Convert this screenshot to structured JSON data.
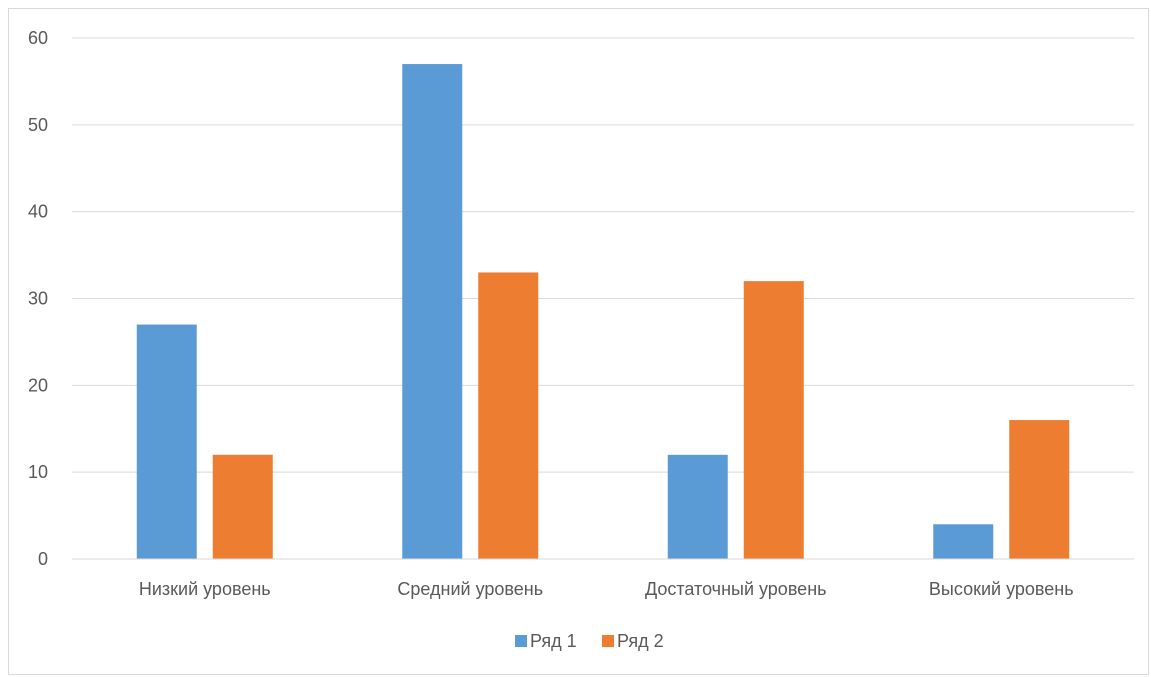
{
  "chart_data": {
    "type": "bar",
    "title": "",
    "xlabel": "",
    "ylabel": "",
    "categories": [
      "Низкий уровень",
      "Средний уровень",
      "Достаточный уровень",
      "Высокий уровень"
    ],
    "series": [
      {
        "name": "Ряд 1",
        "color": "#5b9bd5",
        "values": [
          27,
          57,
          12,
          4
        ]
      },
      {
        "name": "Ряд 2",
        "color": "#ed7d31",
        "values": [
          12,
          33,
          32,
          16
        ]
      }
    ],
    "ylim": [
      0,
      60
    ],
    "yticks": [
      "0",
      "10",
      "20",
      "30",
      "40",
      "50",
      "60"
    ],
    "grid": true,
    "legend_position": "bottom"
  }
}
